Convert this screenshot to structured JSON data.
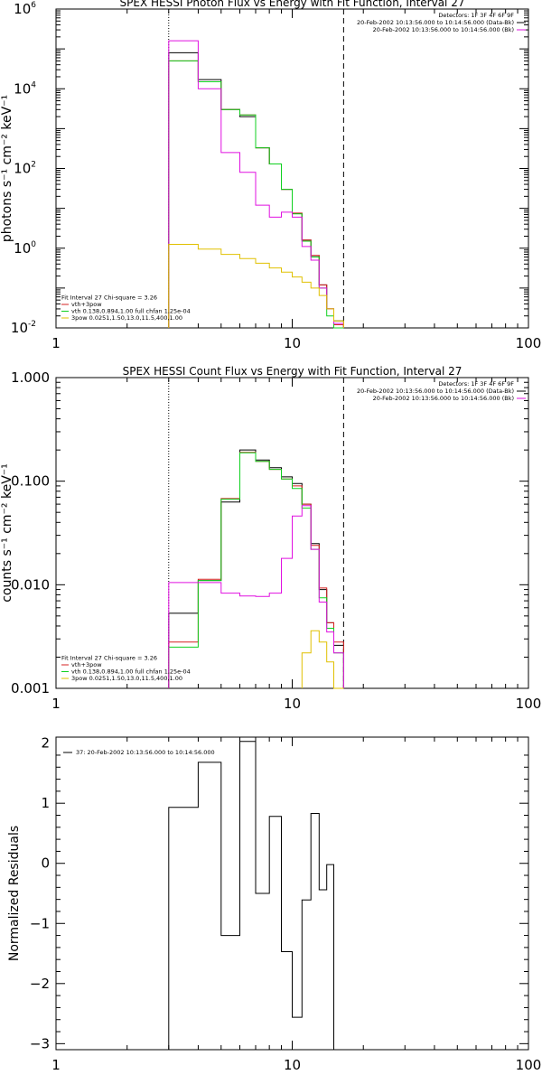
{
  "colors": {
    "black": "#000000",
    "red": "#d62020",
    "green": "#10d020",
    "magenta": "#e010e0",
    "yellow": "#e0c000"
  },
  "chart_data": [
    {
      "type": "line",
      "title": "SPEX HESSI Photon Flux vs Energy with Fit Function, Interval 27",
      "xlabel": "",
      "ylabel": "photons s⁻¹ cm⁻² keV⁻¹",
      "xscale": "log",
      "yscale": "log",
      "xlim": [
        1,
        100
      ],
      "ylim": [
        0.01,
        1000000
      ],
      "xticks": [
        1,
        10,
        100
      ],
      "xtick_labels": [
        "1",
        "10",
        "100"
      ],
      "yticks": [
        0.01,
        1,
        100,
        10000,
        1000000
      ],
      "ytick_labels": [
        [
          "10",
          "-2"
        ],
        [
          "10",
          "0"
        ],
        [
          "10",
          "2"
        ],
        [
          "10",
          "4"
        ],
        [
          "10",
          "6"
        ]
      ],
      "vlines": [
        {
          "x": 3.0,
          "style": "dotted"
        },
        {
          "x": 16.5,
          "style": "dashed"
        }
      ],
      "bin_edges": [
        3.0,
        4.0,
        5.0,
        6.0,
        7.0,
        8.0,
        9.0,
        10.0,
        11.0,
        12.0,
        13.0,
        14.0,
        15.0,
        16.5
      ],
      "series": [
        {
          "name": "",
          "color": "black",
          "values": [
            80000,
            17000,
            3000,
            2000,
            330,
            130,
            30,
            7.5,
            1.6,
            0.65,
            0.12,
            0.03,
            0.015
          ]
        },
        {
          "name": "",
          "color": "red",
          "values": [
            50000,
            15000,
            3000,
            2200,
            330,
            130,
            30,
            7.6,
            1.6,
            0.66,
            0.12,
            0.03,
            0.012
          ]
        },
        {
          "name": "",
          "color": "green",
          "values": [
            50000,
            15000,
            3000,
            2200,
            330,
            130,
            30,
            7.3,
            1.5,
            0.6,
            0.1,
            0.02,
            0.008
          ]
        },
        {
          "name": "",
          "color": "magenta",
          "values": [
            160000,
            10000,
            250,
            80,
            12,
            6,
            8,
            6,
            1.1,
            0.5,
            0.1,
            0.03,
            0.013
          ]
        },
        {
          "name": "",
          "color": "yellow",
          "values": [
            1.25,
            0.95,
            0.7,
            0.55,
            0.42,
            0.32,
            0.25,
            0.19,
            0.14,
            0.1,
            0.065,
            0.03,
            0.015
          ]
        }
      ],
      "legend_top_right": [
        "Detectors: 1F 3F 4F 6F 9F",
        "20-Feb-2002 10:13:56.000 to 10:14:56.000 (Data-Bk)",
        "20-Feb-2002 10:13:56.000 to 10:14:56.000 (Bk)"
      ],
      "legend_top_colors": [
        "",
        "black",
        "magenta"
      ],
      "legend_bottom_left": [
        "Fit Interval 27    Chi-square = 3.26",
        "vth+3pow",
        "vth 0.138,0.894,1.00  full chfan 1.25e-04",
        "3pow 0.0251,1.50,13.0,11.5,400,1.00"
      ],
      "legend_bottom_colors": [
        "",
        "red",
        "green",
        "yellow"
      ]
    },
    {
      "type": "line",
      "title": "SPEX HESSI Count Flux vs Energy with Fit Function, Interval 27",
      "xlabel": "",
      "ylabel": "counts s⁻¹ cm⁻² keV⁻¹",
      "xscale": "log",
      "yscale": "log",
      "xlim": [
        1,
        100
      ],
      "ylim": [
        0.001,
        1.0
      ],
      "xticks": [
        1,
        10,
        100
      ],
      "xtick_labels": [
        "1",
        "10",
        "100"
      ],
      "yticks": [
        0.001,
        0.01,
        0.1,
        1.0
      ],
      "ytick_labels": [
        [
          "0.001",
          ""
        ],
        [
          "0.010",
          ""
        ],
        [
          "0.100",
          ""
        ],
        [
          "1.000",
          ""
        ]
      ],
      "vlines": [
        {
          "x": 3.0,
          "style": "dotted"
        },
        {
          "x": 16.5,
          "style": "dashed"
        }
      ],
      "bin_edges": [
        3.0,
        4.0,
        5.0,
        6.0,
        7.0,
        8.0,
        9.0,
        10.0,
        11.0,
        12.0,
        13.0,
        14.0,
        15.0,
        16.5
      ],
      "series": [
        {
          "name": "",
          "color": "black",
          "values": [
            0.0053,
            0.011,
            0.063,
            0.2,
            0.16,
            0.135,
            0.11,
            0.095,
            0.06,
            0.025,
            0.009,
            0.0043,
            0.0026
          ]
        },
        {
          "name": "",
          "color": "red",
          "values": [
            0.0028,
            0.0113,
            0.068,
            0.19,
            0.155,
            0.13,
            0.105,
            0.09,
            0.06,
            0.024,
            0.0093,
            0.0043,
            0.0028
          ]
        },
        {
          "name": "",
          "color": "green",
          "values": [
            0.0025,
            0.011,
            0.067,
            0.188,
            0.155,
            0.13,
            0.105,
            0.085,
            0.055,
            0.022,
            0.0075,
            0.0038,
            0.0022
          ]
        },
        {
          "name": "",
          "color": "magenta",
          "values": [
            0.0105,
            0.0105,
            0.0083,
            0.0078,
            0.0077,
            0.0083,
            0.018,
            0.046,
            0.058,
            0.022,
            0.0068,
            0.0035,
            0.0022
          ]
        },
        {
          "name": "",
          "color": "yellow",
          "values": [
            null,
            null,
            null,
            null,
            null,
            null,
            null,
            null,
            0.0022,
            0.0036,
            0.0028,
            0.0018,
            0.001
          ]
        }
      ],
      "legend_top_right": [
        "Detectors: 1F 3F 4F 6F 9F",
        "20-Feb-2002 10:13:56.000 to 10:14:56.000 (Data-Bk)",
        "20-Feb-2002 10:13:56.000 to 10:14:56.000 (Bk)"
      ],
      "legend_top_colors": [
        "",
        "black",
        "magenta"
      ],
      "legend_bottom_left": [
        "Fit Interval 27    Chi-square = 3.26",
        "vth+3pow",
        "vth 0.138,0.894,1.00  full chfan 1.25e-04",
        "3pow 0.0251,1.50,13.0,11.5,400,1.00"
      ],
      "legend_bottom_colors": [
        "",
        "red",
        "green",
        "yellow"
      ]
    },
    {
      "type": "line",
      "title": "",
      "xlabel": "",
      "ylabel": "Normalized Residuals",
      "xscale": "log",
      "yscale": "linear",
      "xlim": [
        1,
        100
      ],
      "ylim": [
        -3.1,
        2.1
      ],
      "xticks": [
        1,
        10,
        100
      ],
      "xtick_labels": [
        "1",
        "10",
        "100"
      ],
      "yticks": [
        -3,
        -2,
        -1,
        0,
        1,
        2
      ],
      "ytick_labels": [
        [
          "−3",
          ""
        ],
        [
          "−2",
          ""
        ],
        [
          "−1",
          ""
        ],
        [
          "0",
          ""
        ],
        [
          "1",
          ""
        ],
        [
          "2",
          ""
        ]
      ],
      "vlines": [],
      "bin_edges": [
        3.0,
        4.0,
        5.0,
        6.0,
        7.0,
        8.0,
        9.0,
        10.0,
        11.0,
        12.0,
        13.0,
        14.0,
        15.0,
        16.5
      ],
      "series": [
        {
          "name": "",
          "color": "black",
          "values": [
            0.93,
            1.68,
            -1.2,
            2.03,
            -0.5,
            0.78,
            -1.47,
            -2.56,
            -0.61,
            0.83,
            -0.44,
            -0.02,
            null
          ]
        }
      ],
      "legend_top_left": [
        "37: 20-Feb-2002 10:13:56.000 to 10:14:56.000"
      ],
      "legend_top_left_colors": [
        "black"
      ]
    }
  ]
}
